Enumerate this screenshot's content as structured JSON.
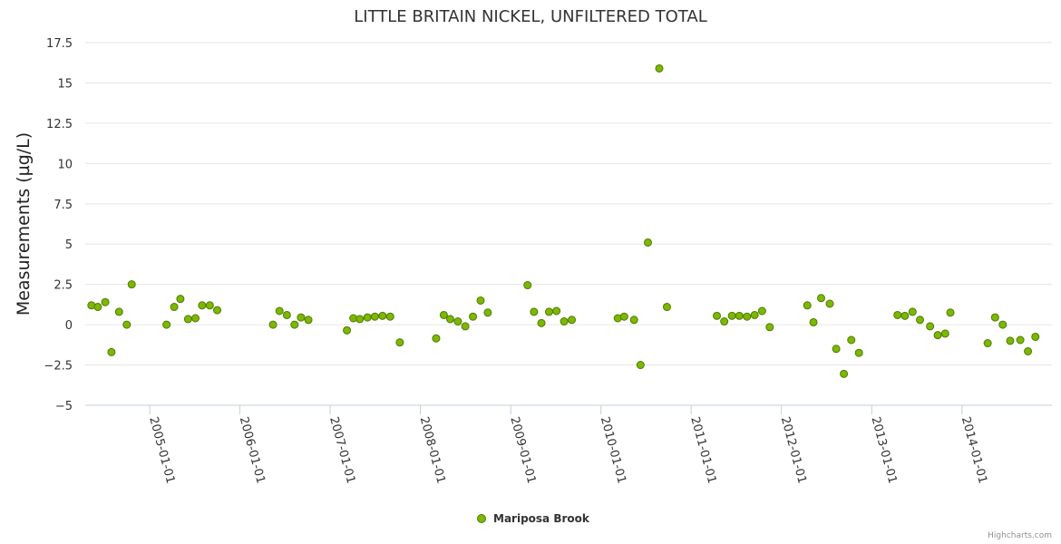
{
  "chart_data": {
    "type": "scatter",
    "title": "LITTLE BRITAIN NICKEL, UNFILTERED TOTAL",
    "ylabel": "Measurements (µg/L)",
    "xlabel": "",
    "ylim": [
      -5,
      17.5
    ],
    "yticks": [
      17.5,
      15,
      12.5,
      10,
      7.5,
      5,
      2.5,
      0,
      -2.5,
      -5
    ],
    "ytick_labels": [
      "17.5",
      "15",
      "12.5",
      "10",
      "7.5",
      "5",
      "2.5",
      "0",
      "−2.5",
      "−5"
    ],
    "xlim": [
      "2004-04-15",
      "2014-12-31"
    ],
    "xticks": [
      "2005-01-01",
      "2006-01-01",
      "2007-01-01",
      "2008-01-01",
      "2009-01-01",
      "2010-01-01",
      "2011-01-01",
      "2012-01-01",
      "2013-01-01",
      "2014-01-01"
    ],
    "grid": true,
    "legend_position": "bottom-center",
    "series": [
      {
        "name": "Mariposa Brook",
        "color": "#7cb800",
        "points": [
          [
            "2004-05-10",
            1.2
          ],
          [
            "2004-06-05",
            1.1
          ],
          [
            "2004-07-05",
            1.4
          ],
          [
            "2004-07-30",
            -1.7
          ],
          [
            "2004-08-30",
            0.8
          ],
          [
            "2004-09-30",
            0.0
          ],
          [
            "2004-10-20",
            2.5
          ],
          [
            "2005-03-10",
            0.0
          ],
          [
            "2005-04-10",
            1.1
          ],
          [
            "2005-05-05",
            1.6
          ],
          [
            "2005-06-05",
            0.35
          ],
          [
            "2005-07-05",
            0.4
          ],
          [
            "2005-08-01",
            1.2
          ],
          [
            "2005-09-01",
            1.2
          ],
          [
            "2005-10-01",
            0.9
          ],
          [
            "2006-05-15",
            0.0
          ],
          [
            "2006-06-10",
            0.85
          ],
          [
            "2006-07-10",
            0.6
          ],
          [
            "2006-08-10",
            0.0
          ],
          [
            "2006-09-05",
            0.45
          ],
          [
            "2006-10-05",
            0.3
          ],
          [
            "2007-03-10",
            -0.35
          ],
          [
            "2007-04-05",
            0.4
          ],
          [
            "2007-05-01",
            0.35
          ],
          [
            "2007-06-01",
            0.45
          ],
          [
            "2007-07-01",
            0.5
          ],
          [
            "2007-08-01",
            0.55
          ],
          [
            "2007-09-01",
            0.5
          ],
          [
            "2007-10-10",
            -1.1
          ],
          [
            "2008-03-05",
            -0.85
          ],
          [
            "2008-04-05",
            0.6
          ],
          [
            "2008-05-01",
            0.35
          ],
          [
            "2008-06-01",
            0.2
          ],
          [
            "2008-07-01",
            -0.1
          ],
          [
            "2008-08-01",
            0.5
          ],
          [
            "2008-09-01",
            1.5
          ],
          [
            "2008-09-30",
            0.75
          ],
          [
            "2009-03-10",
            2.45
          ],
          [
            "2009-04-05",
            0.8
          ],
          [
            "2009-05-05",
            0.1
          ],
          [
            "2009-06-05",
            0.8
          ],
          [
            "2009-07-05",
            0.85
          ],
          [
            "2009-08-05",
            0.2
          ],
          [
            "2009-09-05",
            0.3
          ],
          [
            "2010-03-10",
            0.4
          ],
          [
            "2010-04-05",
            0.5
          ],
          [
            "2010-05-15",
            0.3
          ],
          [
            "2010-06-10",
            -2.5
          ],
          [
            "2010-07-10",
            5.1
          ],
          [
            "2010-08-25",
            15.9
          ],
          [
            "2010-09-25",
            1.1
          ],
          [
            "2011-04-15",
            0.55
          ],
          [
            "2011-05-15",
            0.2
          ],
          [
            "2011-06-15",
            0.55
          ],
          [
            "2011-07-15",
            0.55
          ],
          [
            "2011-08-15",
            0.5
          ],
          [
            "2011-09-15",
            0.6
          ],
          [
            "2011-10-15",
            0.85
          ],
          [
            "2011-11-15",
            -0.15
          ],
          [
            "2012-04-15",
            1.2
          ],
          [
            "2012-05-10",
            0.15
          ],
          [
            "2012-06-10",
            1.65
          ],
          [
            "2012-07-15",
            1.3
          ],
          [
            "2012-08-10",
            -1.5
          ],
          [
            "2012-09-10",
            -3.05
          ],
          [
            "2012-10-10",
            -0.95
          ],
          [
            "2012-11-10",
            -1.75
          ],
          [
            "2013-04-15",
            0.6
          ],
          [
            "2013-05-15",
            0.55
          ],
          [
            "2013-06-15",
            0.8
          ],
          [
            "2013-07-15",
            0.3
          ],
          [
            "2013-08-25",
            -0.1
          ],
          [
            "2013-09-25",
            -0.65
          ],
          [
            "2013-10-25",
            -0.55
          ],
          [
            "2013-11-15",
            0.75
          ],
          [
            "2014-04-15",
            -1.15
          ],
          [
            "2014-05-15",
            0.45
          ],
          [
            "2014-06-15",
            0.0
          ],
          [
            "2014-07-15",
            -1.0
          ],
          [
            "2014-08-25",
            -0.95
          ],
          [
            "2014-09-25",
            -1.65
          ],
          [
            "2014-10-25",
            -0.75
          ]
        ]
      }
    ],
    "credits": "Highcharts.com"
  }
}
